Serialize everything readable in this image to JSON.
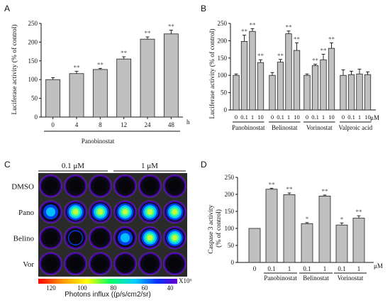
{
  "panels": {
    "A": "A",
    "B": "B",
    "C": "C",
    "D": "D"
  },
  "chart_data": [
    {
      "id": "A",
      "type": "bar",
      "categories": [
        "0",
        "4",
        "8",
        "12",
        "24",
        "48"
      ],
      "values": [
        100,
        116,
        127,
        155,
        208,
        222
      ],
      "errors": [
        5,
        6,
        3,
        6,
        6,
        10
      ],
      "significance": [
        "",
        "**",
        "**",
        "**",
        "**",
        "**"
      ],
      "title": "",
      "xlabel": "Panobinostat",
      "x_unit": "h",
      "ylabel": "Luciferase activity (% of control)",
      "ylim": [
        0,
        250
      ],
      "yticks": [
        0,
        50,
        100,
        150,
        200,
        250
      ],
      "grid": false
    },
    {
      "id": "B",
      "type": "bar",
      "ylabel": "Luciferase activity (% of control)",
      "ylim": [
        0,
        250
      ],
      "yticks": [
        0,
        50,
        100,
        150,
        200,
        250
      ],
      "x_unit": "μM",
      "grid": false,
      "groups": [
        {
          "name": "Panobinostat",
          "categories": [
            "0",
            "0.1",
            "1",
            "10"
          ],
          "values": [
            100,
            198,
            227,
            137
          ],
          "errors": [
            4,
            18,
            8,
            8
          ],
          "significance": [
            "",
            "**",
            "**",
            "**"
          ]
        },
        {
          "name": "Belinostat",
          "categories": [
            "0",
            "0.1",
            "1",
            "10"
          ],
          "values": [
            100,
            138,
            220,
            172
          ],
          "errors": [
            8,
            8,
            8,
            22
          ],
          "significance": [
            "",
            "**",
            "**",
            "**"
          ]
        },
        {
          "name": "Vorinostat",
          "categories": [
            "0",
            "0.1",
            "1",
            "10"
          ],
          "values": [
            100,
            128,
            145,
            178
          ],
          "errors": [
            4,
            4,
            16,
            16
          ],
          "significance": [
            "",
            "**",
            "**",
            "**"
          ]
        },
        {
          "name": "Valproic acid",
          "categories": [
            "0",
            "0.1",
            "1",
            "10"
          ],
          "values": [
            100,
            102,
            104,
            102
          ],
          "errors": [
            16,
            10,
            14,
            8
          ],
          "significance": [
            "",
            "",
            "",
            ""
          ]
        }
      ]
    },
    {
      "id": "D",
      "type": "bar",
      "ylabel": "Caspase 3 activity (% of control)",
      "ylim": [
        0,
        250
      ],
      "yticks": [
        0,
        50,
        100,
        150,
        200,
        250
      ],
      "x_unit": "μM",
      "grid": false,
      "groups": [
        {
          "name": "",
          "categories": [
            "0"
          ],
          "values": [
            100
          ],
          "errors": [
            0
          ],
          "significance": [
            ""
          ]
        },
        {
          "name": "Panobinostat",
          "categories": [
            "0.1",
            "1"
          ],
          "values": [
            215,
            199
          ],
          "errors": [
            3,
            5
          ],
          "significance": [
            "**",
            "**"
          ]
        },
        {
          "name": "Belinostat",
          "categories": [
            "0.1",
            "1"
          ],
          "values": [
            114,
            195
          ],
          "errors": [
            3,
            3
          ],
          "significance": [
            "*",
            "**"
          ]
        },
        {
          "name": "Vorinostat",
          "categories": [
            "0.1",
            "1"
          ],
          "values": [
            110,
            130
          ],
          "errors": [
            6,
            7
          ],
          "significance": [
            "*",
            "**"
          ]
        }
      ]
    }
  ],
  "imaging": {
    "concentrations": [
      "0.1 μM",
      "1 μM"
    ],
    "row_labels": [
      "DMSO",
      "Pano",
      "Belino",
      "Vor"
    ],
    "row_intensity": [
      [
        0.15,
        0.2,
        0.18,
        0.12,
        0.2,
        0.15
      ],
      [
        0.55,
        0.8,
        0.8,
        0.82,
        0.75,
        0.8
      ],
      [
        0.4,
        0.45,
        0.35,
        0.55,
        0.8,
        0.78
      ],
      [
        0.2,
        0.25,
        0.2,
        0.25,
        0.3,
        0.25
      ]
    ],
    "scale_ticks": [
      "120",
      "100",
      "80",
      "60",
      "40"
    ],
    "scale_exponent": "X10⁶",
    "scale_label": "Photons influx ((p/s/cm2/sr)"
  }
}
